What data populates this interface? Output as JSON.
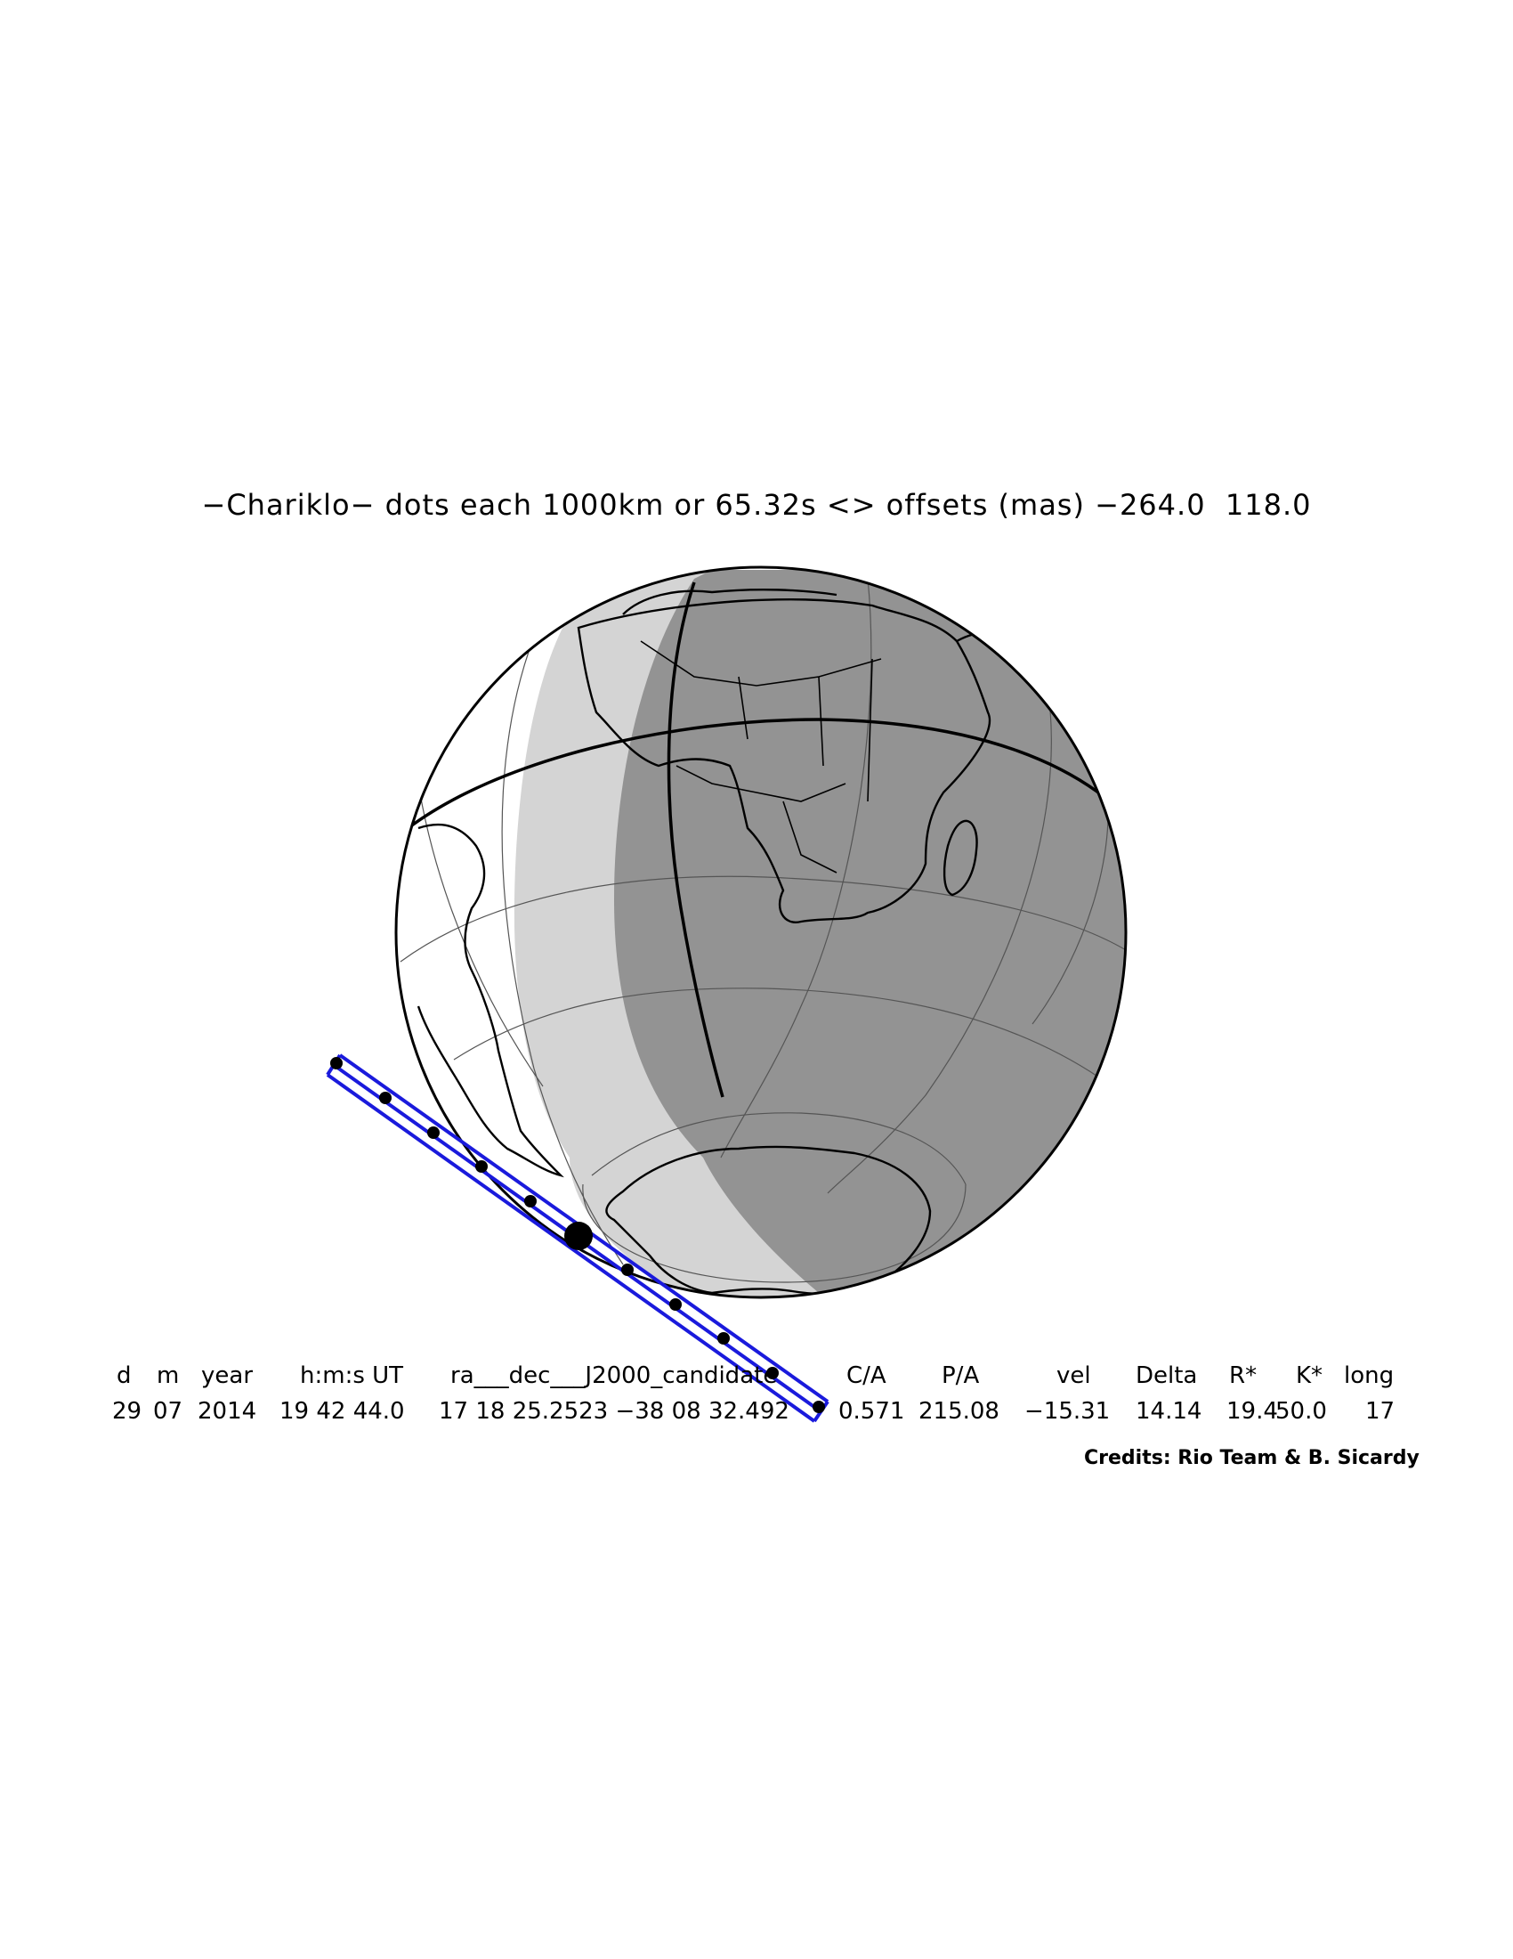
{
  "title": "−Chariklo− dots each 1000km or 65.32s <> offsets (mas) −264.0  118.0",
  "table": {
    "headers": [
      "d",
      "m",
      "year",
      "h:m:s UT",
      "ra___dec___J2000_candidate",
      "C/A",
      "P/A",
      "vel",
      "Delta",
      "R*",
      "K*",
      "long"
    ],
    "values": [
      "29",
      "07",
      "2014",
      "19 42 44.0",
      "17 18 25.2523 −38 08 32.492",
      "0.571",
      "215.08",
      "−15.31",
      "14.14",
      "19.4",
      "50.0",
      "17"
    ]
  },
  "credits": "Credits: Rio Team & B. Sicardy",
  "colors": {
    "night_shade": "#939393",
    "twilight_shade": "#d4d4d4",
    "path": "#1a1adc",
    "ink": "#000000"
  },
  "icons": [
    "occultation-path-dots",
    "closest-approach-dot"
  ]
}
